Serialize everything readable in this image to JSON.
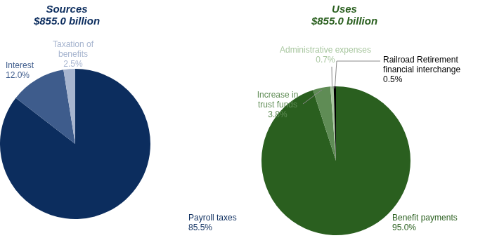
{
  "chart_data": [
    {
      "type": "pie",
      "title": "Sources",
      "subtitle": "$855.0 billion",
      "categories": [
        "Payroll taxes",
        "Interest",
        "Taxation of benefits"
      ],
      "values": [
        85.5,
        12.0,
        2.5
      ],
      "value_labels": [
        "85.5%",
        "12.0%",
        "2.5%"
      ],
      "colors": [
        "#0c2d5e",
        "#3e5c8c",
        "#a7b5cf"
      ],
      "data_labels": true
    },
    {
      "type": "pie",
      "title": "Uses",
      "subtitle": "$855.0 billion",
      "categories": [
        "Benefit payments",
        "Increase in trust funds",
        "Administrative expenses",
        "Railroad Retirement financial interchange"
      ],
      "values": [
        95.0,
        3.8,
        0.7,
        0.5
      ],
      "value_labels": [
        "95.0%",
        "3.8%",
        "0.7%",
        "0.5%"
      ],
      "colors": [
        "#2a5f1f",
        "#5f8c55",
        "#a9c7a0",
        "#000000"
      ],
      "data_labels": true
    }
  ]
}
